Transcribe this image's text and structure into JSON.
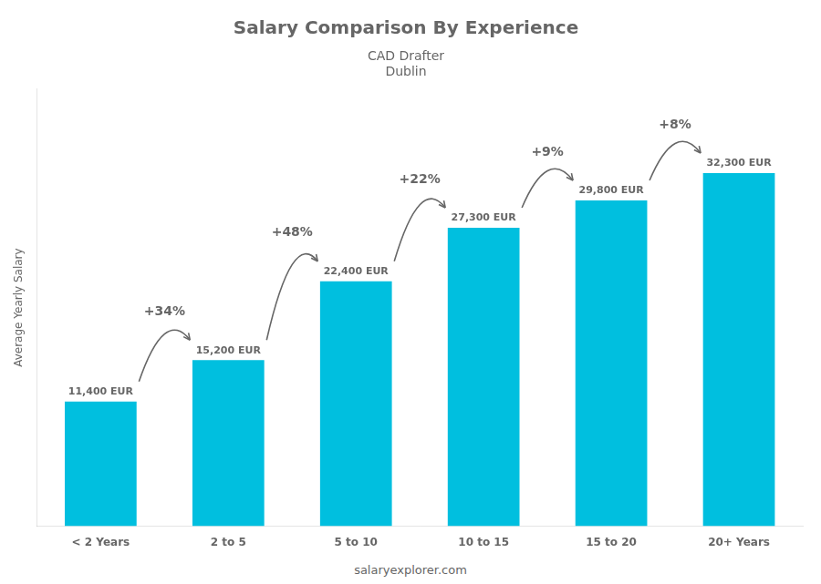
{
  "chart_data": {
    "type": "bar",
    "title": "Salary Comparison By Experience",
    "subtitle": [
      "CAD Drafter",
      "Dublin"
    ],
    "categories": [
      "< 2 Years",
      "2 to 5",
      "5 to 10",
      "10 to 15",
      "15 to 20",
      "20+ Years"
    ],
    "values": [
      11400,
      15200,
      22400,
      27300,
      29800,
      32300
    ],
    "value_labels": [
      "11,400 EUR",
      "15,200 EUR",
      "22,400 EUR",
      "27,300 EUR",
      "29,800 EUR",
      "32,300 EUR"
    ],
    "data_labels": true,
    "annotations": [
      "+34%",
      "+48%",
      "+22%",
      "+9%",
      "+8%"
    ],
    "ylabel": "Average Yearly Salary",
    "watermark": "salaryexplorer.com",
    "color": "#00bfdf",
    "ylim": [
      0,
      40000
    ],
    "tick_labels": "x",
    "grid": false
  }
}
